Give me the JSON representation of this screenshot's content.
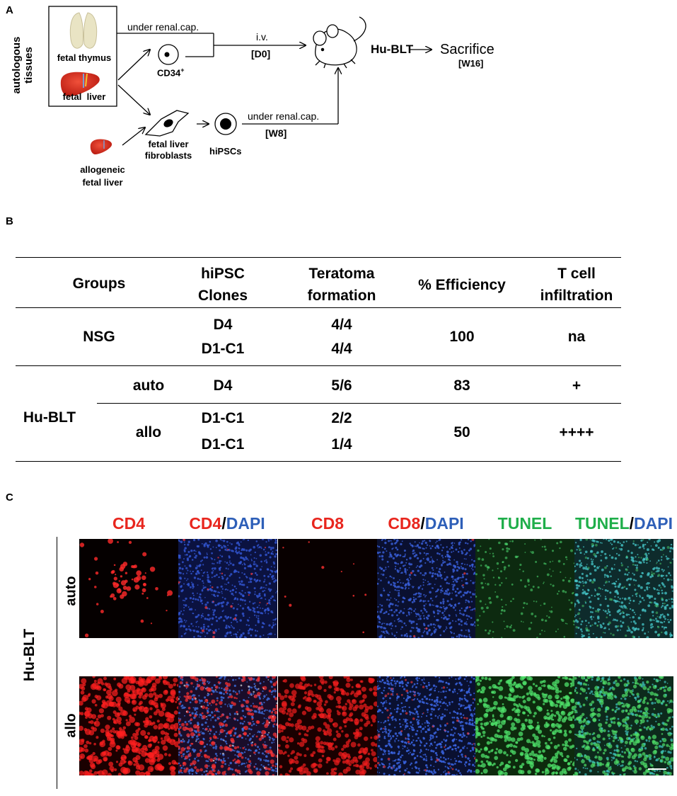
{
  "panelA": {
    "letter": "A",
    "side_label": "autologous tissues",
    "fetal_thymus": "fetal thymus",
    "fetal_liver": "fetal  liver",
    "allogeneic": "allogeneic",
    "fetal_liver2": "fetal liver",
    "cd34": "CD34",
    "cd34_sup": "+",
    "fibroblasts_1": "fetal liver",
    "fibroblasts_2": "fibroblasts",
    "hipscs": "hiPSCs",
    "under_renal_1": "under renal.cap.",
    "under_renal_2": "under renal.cap.",
    "iv": "i.v.",
    "d0": "[D0]",
    "w8": "[W8]",
    "hublt": "Hu-BLT",
    "sacrifice": "Sacrifice",
    "w16": "[W16]"
  },
  "panelB": {
    "letter": "B",
    "headers": {
      "groups": "Groups",
      "clones_1": "hiPSC",
      "clones_2": "Clones",
      "teratoma_1": "Teratoma",
      "teratoma_2": "formation",
      "efficiency": "% Efficiency",
      "tcell_1": "T cell",
      "tcell_2": "infiltration"
    },
    "nsg": {
      "group": "NSG",
      "clone_1": "D4",
      "clone_2": "D1-C1",
      "ter_1": "4/4",
      "ter_2": "4/4",
      "efficiency": "100",
      "tcell": "na"
    },
    "hublt": {
      "group": "Hu-BLT",
      "auto": {
        "label": "auto",
        "clone": "D4",
        "ter": "5/6",
        "efficiency": "83",
        "tcell": "+"
      },
      "allo": {
        "label": "allo",
        "clone_1": "D1-C1",
        "clone_2": "D1-C1",
        "ter_1": "2/2",
        "ter_2": "1/4",
        "efficiency": "50",
        "tcell": "++++"
      }
    }
  },
  "panelC": {
    "letter": "C",
    "columns": [
      {
        "a": "CD4"
      },
      {
        "a": "CD4",
        "sep": "/",
        "b": "DAPI"
      },
      {
        "a": "CD8"
      },
      {
        "a": "CD8",
        "sep": "/",
        "b": "DAPI"
      },
      {
        "a": "TUNEL"
      },
      {
        "a": "TUNEL",
        "sep": "/",
        "b": "DAPI"
      }
    ],
    "row_group": "Hu-BLT",
    "rows": [
      "auto",
      "allo"
    ],
    "colors": {
      "red": "#e8261e",
      "blue": "#2e5fb8",
      "green": "#1fae4a"
    }
  }
}
